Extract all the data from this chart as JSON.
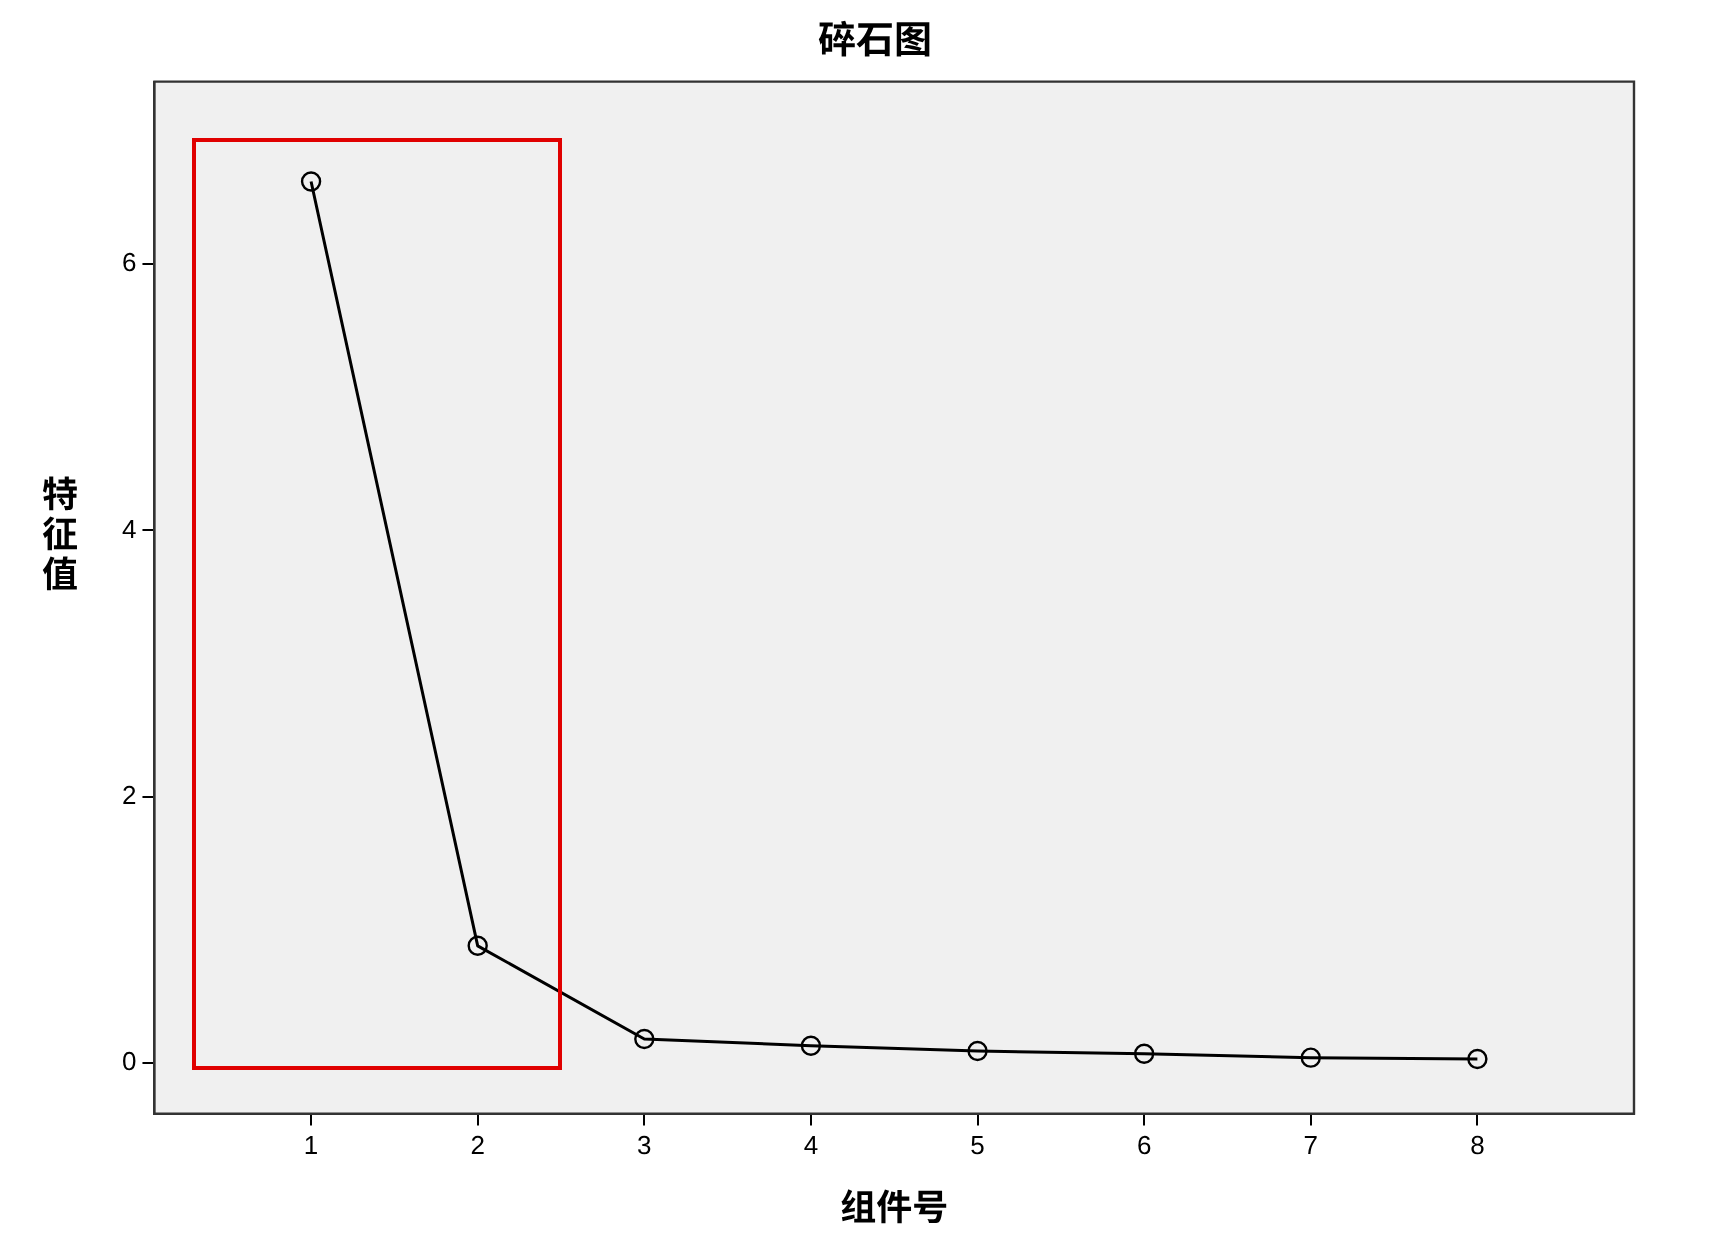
{
  "chart_data": {
    "type": "line",
    "title": "碎石图",
    "xlabel": "组件号",
    "ylabel": "特征值",
    "x": [
      1,
      2,
      3,
      4,
      5,
      6,
      7,
      8
    ],
    "series": [
      {
        "color": "#000000",
        "values": [
          6.62,
          0.88,
          0.18,
          0.13,
          0.09,
          0.07,
          0.04,
          0.03
        ]
      }
    ],
    "xlim": [
      0.06,
      8.94
    ],
    "xticks": [
      1,
      2,
      3,
      4,
      5,
      6,
      7,
      8
    ],
    "ylim": [
      -0.38,
      7.37
    ],
    "yticks": [
      0,
      2,
      4,
      6
    ],
    "marker": "circle",
    "line_style": "solid",
    "grid": false,
    "legend": false
  }
}
